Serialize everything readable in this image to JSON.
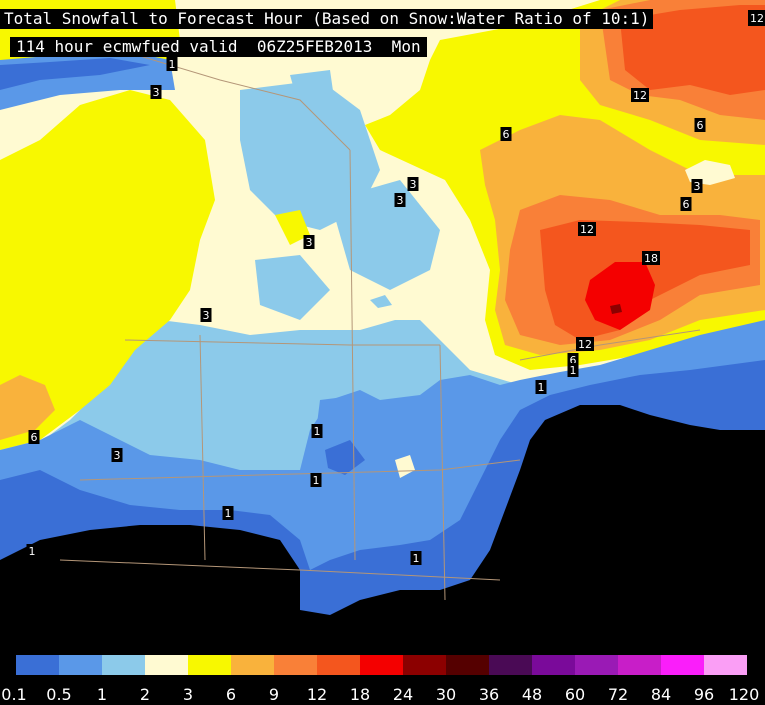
{
  "title": "Total Snowfall to Forecast Hour (Based on Snow:Water Ratio of 10:1)",
  "subtitle": "114 hour ecmwfued valid  06Z25FEB2013  Mon",
  "corner_labels": [
    "1",
    "12"
  ],
  "contour_labels": [
    "1",
    "3",
    "3",
    "6",
    "3",
    "3",
    "3",
    "6",
    "3",
    "6",
    "12",
    "12",
    "18",
    "12",
    "6",
    "1",
    "1",
    "1",
    "1",
    "1",
    "1",
    "1",
    "6",
    "3"
  ],
  "legend": {
    "ticks": [
      "0.1",
      "0.5",
      "1",
      "2",
      "3",
      "6",
      "9",
      "12",
      "18",
      "24",
      "30",
      "36",
      "48",
      "60",
      "72",
      "84",
      "96",
      "120"
    ],
    "colors": [
      "#3a6fd6",
      "#5a98e8",
      "#8ccaea",
      "#fffad2",
      "#f8f800",
      "#f9b23c",
      "#f98038",
      "#f4561e",
      "#f40000",
      "#8c0000",
      "#550000",
      "#4a0a55",
      "#7a0a9a",
      "#9a1ab5",
      "#c81ec8",
      "#fa1efa",
      "#fa9ef5",
      "#ffffff"
    ]
  }
}
